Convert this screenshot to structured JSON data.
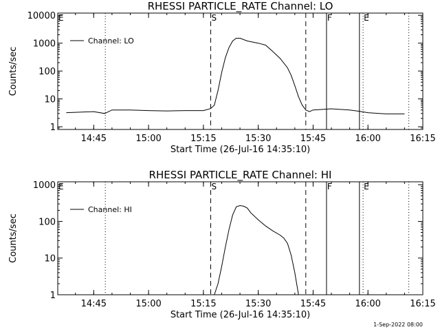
{
  "chart_data": [
    {
      "type": "line",
      "title": "RHESSI PARTICLE_RATE Channel: LO",
      "xlabel": "Start Time (26-Jul-16 14:35:10)",
      "ylabel": "Counts/sec",
      "x_tick_labels": [
        "14:45",
        "15:00",
        "15:15",
        "15:30",
        "15:45",
        "16:00",
        "16:15"
      ],
      "y_tick_labels": [
        "1",
        "10",
        "100",
        "1000",
        "10000"
      ],
      "y_scale": "log",
      "xlim": [
        "14:35:10",
        "16:15:00"
      ],
      "ylim": [
        0.8,
        12000
      ],
      "legend": {
        "entries": [
          "Channel: LO"
        ],
        "placement": "top-left"
      },
      "markers": [
        {
          "label": "E",
          "time": "14:35:10",
          "style": "dotted"
        },
        {
          "label": "",
          "time": "14:48:10",
          "style": "dotted"
        },
        {
          "label": "S",
          "time": "15:17:00",
          "style": "dashed"
        },
        {
          "label": "",
          "time": "15:43:00",
          "style": "dashed"
        },
        {
          "label": "F",
          "time": "15:48:40",
          "style": "solid"
        },
        {
          "label": "",
          "time": "15:57:40",
          "style": "solid"
        },
        {
          "label": "E",
          "time": "15:58:40",
          "style": "dotted"
        },
        {
          "label": "",
          "time": "16:11:10",
          "style": "dotted"
        }
      ],
      "series": [
        {
          "name": "Channel: LO",
          "x": [
            "14:37:30",
            "14:40:00",
            "14:45:00",
            "14:48:00",
            "14:50:00",
            "14:55:00",
            "15:00:00",
            "15:05:00",
            "15:10:00",
            "15:15:00",
            "15:17:00",
            "15:18:00",
            "15:19:00",
            "15:20:00",
            "15:21:00",
            "15:22:00",
            "15:23:00",
            "15:24:00",
            "15:25:00",
            "15:27:00",
            "15:30:00",
            "15:32:00",
            "15:34:00",
            "15:36:00",
            "15:38:00",
            "15:39:00",
            "15:40:00",
            "15:41:00",
            "15:42:00",
            "15:43:00",
            "15:44:00",
            "15:45:00",
            "15:50:00",
            "15:55:00",
            "15:57:40",
            "16:00:00",
            "16:03:00",
            "16:05:00",
            "16:10:00"
          ],
          "y": [
            3.2,
            3.3,
            3.5,
            3.0,
            4.0,
            4.0,
            3.8,
            3.7,
            3.8,
            3.8,
            4.5,
            6,
            20,
            90,
            300,
            700,
            1200,
            1500,
            1500,
            1200,
            1000,
            850,
            500,
            280,
            130,
            70,
            30,
            12,
            6,
            4,
            3.5,
            4.0,
            4.4,
            4.0,
            3.6,
            3.2,
            3.0,
            2.9,
            2.9
          ]
        }
      ]
    },
    {
      "type": "line",
      "title": "RHESSI PARTICLE_RATE Channel: HI",
      "xlabel": "Start Time (26-Jul-16 14:35:10)",
      "ylabel": "Counts/sec",
      "x_tick_labels": [
        "14:45",
        "15:00",
        "15:15",
        "15:30",
        "15:45",
        "16:00",
        "16:15"
      ],
      "y_tick_labels": [
        "1",
        "10",
        "100",
        "1000"
      ],
      "y_scale": "log",
      "xlim": [
        "14:35:10",
        "16:15:00"
      ],
      "ylim": [
        1,
        1200
      ],
      "legend": {
        "entries": [
          "Channel: HI"
        ],
        "placement": "top-left"
      },
      "markers": [
        {
          "label": "E",
          "time": "14:35:10",
          "style": "dotted"
        },
        {
          "label": "",
          "time": "14:48:10",
          "style": "dotted"
        },
        {
          "label": "S",
          "time": "15:17:00",
          "style": "dashed"
        },
        {
          "label": "",
          "time": "15:43:00",
          "style": "dashed"
        },
        {
          "label": "F",
          "time": "15:48:40",
          "style": "solid"
        },
        {
          "label": "",
          "time": "15:57:40",
          "style": "solid"
        },
        {
          "label": "E",
          "time": "15:58:40",
          "style": "dotted"
        },
        {
          "label": "",
          "time": "16:11:10",
          "style": "dotted"
        }
      ],
      "series": [
        {
          "name": "Channel: HI",
          "x": [
            "15:18:00",
            "15:19:00",
            "15:20:00",
            "15:21:00",
            "15:22:00",
            "15:23:00",
            "15:24:00",
            "15:25:00",
            "15:26:00",
            "15:27:00",
            "15:28:00",
            "15:30:00",
            "15:32:00",
            "15:34:00",
            "15:36:00",
            "15:37:00",
            "15:38:00",
            "15:39:00",
            "15:40:00",
            "15:41:00"
          ],
          "y": [
            1,
            2,
            6,
            20,
            60,
            150,
            250,
            270,
            260,
            230,
            170,
            110,
            75,
            55,
            42,
            35,
            25,
            12,
            4,
            1
          ]
        }
      ]
    }
  ],
  "footer": {
    "timestamp": "1-Sep-2022 08:00"
  }
}
